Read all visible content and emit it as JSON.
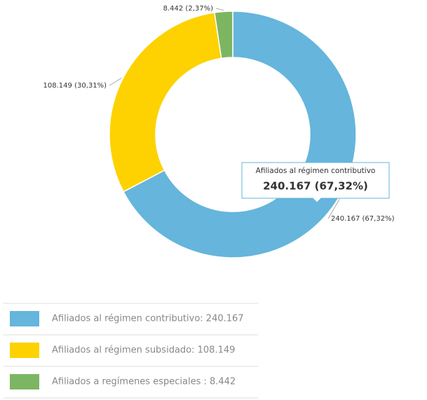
{
  "chart_data": {
    "type": "donut",
    "categories": [
      "Afiliados al régimen contributivo",
      "Afiliados al régimen subsidado",
      "Afiliados a regímenes especiales"
    ],
    "values": [
      240167,
      108149,
      8442
    ],
    "value_labels": [
      "240.167 (67,32%)",
      "108.149 (30,31%)",
      "8.442 (2,37%)"
    ],
    "colors": [
      "#65b5dc",
      "#fdd200",
      "#7cb662"
    ],
    "legend": [
      "Afiliados al régimen contributivo: 240.167",
      "Afiliados al régimen subsidado: 108.149",
      "Afiliados a regímenes especiales : 8.442"
    ]
  }
}
